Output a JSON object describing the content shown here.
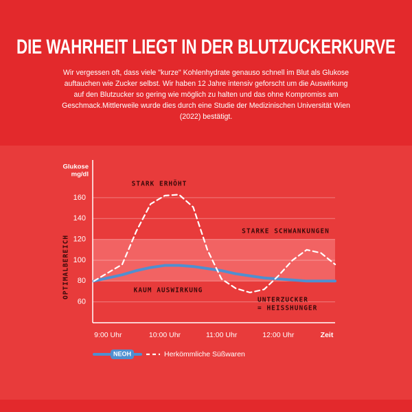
{
  "chart_data": {
    "type": "line",
    "title": "DIE WAHRHEIT LIEGT IN DER BLUTZUCKERKURVE",
    "subtitle": "Wir vergessen oft, dass viele \"kurze\" Kohlenhydrate genauso schnell im Blut als Glukose auftauchen wie Zucker selbst. Wir haben 12 Jahre intensiv geforscht um die Auswirkung auf den Blutzucker so gering wie möglich zu halten und das ohne Kompromiss am Geschmack.Mittlerweile wurde dies durch eine Studie der Medizinischen Universität Wien (2022) bestätigt.",
    "y_label": [
      "Glukose",
      "mg/dl"
    ],
    "x_label": "Zeit",
    "band_label": "OPTIMALBEREICH",
    "band": [
      80,
      120
    ],
    "annotations": [
      "STARK ERHÖHT",
      "STARKE SCHWANKUNGEN",
      "KAUM AUSWIRKUNG",
      "UNTERZUCKER",
      "= HEISSHUNGER"
    ],
    "x": [
      8.75,
      9.25,
      9.5,
      9.75,
      10.0,
      10.25,
      10.5,
      10.75,
      11.0,
      11.25,
      11.5,
      11.75,
      12.0,
      12.25,
      12.5,
      12.75,
      13.0
    ],
    "series": [
      {
        "name": "NEOH",
        "color": "#4f8fd0",
        "dashed": false,
        "values": [
          80,
          86,
          90,
          93,
          95,
          95,
          94,
          92,
          90,
          87,
          85,
          83,
          82,
          81,
          80,
          80,
          80
        ]
      },
      {
        "name": "Herkömmliche Süßwaren",
        "color": "#ffffff",
        "dashed": true,
        "values": [
          80,
          96,
          128,
          154,
          162,
          163,
          151,
          110,
          82,
          73,
          69,
          72,
          85,
          100,
          110,
          107,
          96
        ]
      }
    ],
    "xlim": [
      8.73,
      13.0
    ],
    "xticks": [
      {
        "value": 9,
        "label": "9:00 Uhr"
      },
      {
        "value": 10,
        "label": "10:00 Uhr"
      },
      {
        "value": 11,
        "label": "11:00 Uhr"
      },
      {
        "value": 12,
        "label": "12:00 Uhr"
      }
    ],
    "ylim": [
      40,
      185
    ],
    "yticks": [
      60,
      80,
      100,
      120,
      140,
      160
    ],
    "grid": true
  }
}
